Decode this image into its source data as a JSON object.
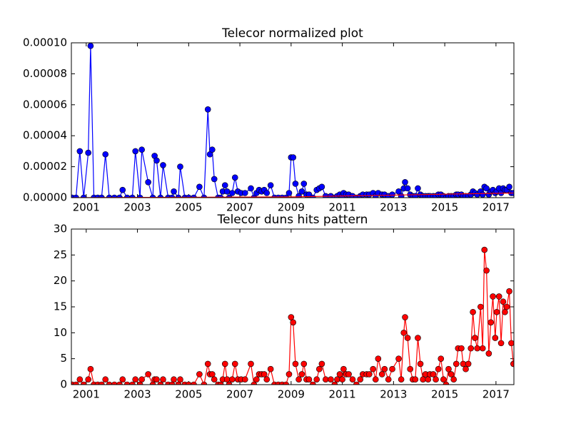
{
  "chart_data": [
    {
      "type": "line",
      "title": "Telecor normalized plot",
      "x": [
        2000.45,
        2000.6,
        2000.75,
        2000.9,
        2001.08,
        2001.17,
        2001.3,
        2001.45,
        2001.6,
        2001.75,
        2001.9,
        2002.1,
        2002.3,
        2002.42,
        2002.6,
        2002.8,
        2002.92,
        2003.1,
        2003.17,
        2003.42,
        2003.6,
        2003.67,
        2003.75,
        2003.9,
        2004.0,
        2004.2,
        2004.35,
        2004.42,
        2004.6,
        2004.67,
        2004.85,
        2005.0,
        2005.2,
        2005.42,
        2005.6,
        2005.75,
        2005.83,
        2005.92,
        2006.0,
        2006.15,
        2006.25,
        2006.33,
        2006.42,
        2006.5,
        2006.58,
        2006.7,
        2006.81,
        2006.92,
        2007.05,
        2007.2,
        2007.43,
        2007.55,
        2007.65,
        2007.75,
        2007.85,
        2007.95,
        2008.05,
        2008.2,
        2008.35,
        2008.5,
        2008.65,
        2008.8,
        2008.92,
        2009.0,
        2009.08,
        2009.17,
        2009.3,
        2009.42,
        2009.5,
        2009.6,
        2009.7,
        2009.85,
        2010.0,
        2010.1,
        2010.2,
        2010.35,
        2010.55,
        2010.7,
        2010.8,
        2010.9,
        2011.0,
        2011.05,
        2011.15,
        2011.25,
        2011.4,
        2011.55,
        2011.7,
        2011.8,
        2011.95,
        2012.05,
        2012.2,
        2012.3,
        2012.4,
        2012.55,
        2012.65,
        2012.8,
        2012.95,
        2013.2,
        2013.3,
        2013.4,
        2013.45,
        2013.55,
        2013.65,
        2013.75,
        2013.85,
        2013.95,
        2014.05,
        2014.15,
        2014.25,
        2014.35,
        2014.42,
        2014.55,
        2014.65,
        2014.75,
        2014.85,
        2014.95,
        2015.05,
        2015.15,
        2015.25,
        2015.35,
        2015.45,
        2015.52,
        2015.65,
        2015.72,
        2015.82,
        2015.92,
        2016.02,
        2016.1,
        2016.18,
        2016.27,
        2016.4,
        2016.48,
        2016.55,
        2016.63,
        2016.72,
        2016.8,
        2016.88,
        2016.97,
        2017.03,
        2017.12,
        2017.2,
        2017.28,
        2017.35,
        2017.42,
        2017.52,
        2017.6,
        2017.68
      ],
      "xlim": [
        2000.42,
        2017.7
      ],
      "xticks": [
        2001,
        2003,
        2005,
        2007,
        2009,
        2011,
        2013,
        2015,
        2017
      ],
      "ylim": [
        0,
        0.0001
      ],
      "yticks": [
        {
          "value": 0,
          "label": "0.00000"
        },
        {
          "value": 2e-05,
          "label": "0.00002"
        },
        {
          "value": 4e-05,
          "label": "0.00004"
        },
        {
          "value": 6e-05,
          "label": "0.00006"
        },
        {
          "value": 8e-05,
          "label": "0.00008"
        },
        {
          "value": 0.0001,
          "label": "0.00010"
        }
      ],
      "series": [
        {
          "color": "#0000ff",
          "marker": "o",
          "values": [
            0,
            0,
            3e-05,
            0,
            2.9e-05,
            9.8e-05,
            0,
            0,
            0,
            2.8e-05,
            0,
            0,
            0,
            5e-06,
            0,
            0,
            3e-05,
            0,
            3.1e-05,
            1e-05,
            0,
            2.7e-05,
            2.4e-05,
            0,
            2.1e-05,
            0,
            0,
            4e-06,
            0,
            2e-05,
            0,
            0,
            0,
            7e-06,
            0,
            5.7e-05,
            2.8e-05,
            3.1e-05,
            1.2e-05,
            0,
            0,
            4e-06,
            8e-06,
            4e-06,
            0,
            3e-06,
            1.3e-05,
            4e-06,
            3e-06,
            3e-06,
            6e-06,
            0,
            3e-06,
            5e-06,
            4e-06,
            5e-06,
            3e-06,
            8e-06,
            0,
            0,
            0,
            0,
            3e-06,
            2.6e-05,
            2.6e-05,
            9e-06,
            1e-06,
            4e-06,
            9e-06,
            2e-06,
            2e-06,
            0,
            5e-06,
            6e-06,
            7e-06,
            1e-06,
            1e-06,
            0,
            1e-06,
            2e-06,
            1e-06,
            3e-06,
            2e-06,
            2e-06,
            1e-06,
            0,
            1e-06,
            2e-06,
            2e-06,
            2e-06,
            3e-06,
            1e-06,
            3e-06,
            2e-06,
            2e-06,
            1e-06,
            2e-06,
            4e-06,
            1e-06,
            6e-06,
            1e-05,
            6e-06,
            2e-06,
            1e-06,
            1e-06,
            6e-06,
            2e-06,
            1e-06,
            1e-06,
            1e-06,
            1e-06,
            1e-06,
            1e-06,
            2e-06,
            2e-06,
            1e-06,
            0,
            1e-06,
            1e-06,
            1e-06,
            2e-06,
            2e-06,
            2e-06,
            1e-06,
            1e-06,
            1e-06,
            2e-06,
            4e-06,
            3e-06,
            2e-06,
            4e-06,
            2e-06,
            7e-06,
            6e-06,
            2e-06,
            4e-06,
            5e-06,
            3e-06,
            4e-06,
            6e-06,
            3e-06,
            6e-06,
            5e-06,
            5e-06,
            7e-06,
            3e-06,
            3e-06
          ]
        },
        {
          "color": "#ff0000",
          "x": [
            2000.45,
            2009.0,
            2017.68
          ],
          "values": [
            0,
            5e-07,
            3e-06
          ]
        }
      ]
    },
    {
      "type": "line",
      "title": "Telecor duns hits pattern",
      "x": [
        2000.45,
        2000.6,
        2000.75,
        2000.9,
        2001.08,
        2001.17,
        2001.3,
        2001.45,
        2001.6,
        2001.75,
        2001.9,
        2002.1,
        2002.3,
        2002.42,
        2002.6,
        2002.8,
        2002.92,
        2003.1,
        2003.17,
        2003.42,
        2003.6,
        2003.67,
        2003.75,
        2003.9,
        2004.0,
        2004.2,
        2004.35,
        2004.42,
        2004.6,
        2004.67,
        2004.85,
        2005.0,
        2005.2,
        2005.42,
        2005.6,
        2005.75,
        2005.83,
        2005.92,
        2006.0,
        2006.15,
        2006.25,
        2006.33,
        2006.42,
        2006.5,
        2006.58,
        2006.7,
        2006.81,
        2006.92,
        2007.05,
        2007.2,
        2007.43,
        2007.55,
        2007.65,
        2007.75,
        2007.85,
        2007.95,
        2008.05,
        2008.2,
        2008.35,
        2008.5,
        2008.65,
        2008.8,
        2008.92,
        2009.0,
        2009.08,
        2009.17,
        2009.3,
        2009.42,
        2009.5,
        2009.6,
        2009.7,
        2009.85,
        2010.0,
        2010.1,
        2010.2,
        2010.35,
        2010.55,
        2010.7,
        2010.8,
        2010.9,
        2011.0,
        2011.05,
        2011.15,
        2011.25,
        2011.4,
        2011.55,
        2011.7,
        2011.8,
        2011.95,
        2012.05,
        2012.2,
        2012.3,
        2012.4,
        2012.55,
        2012.65,
        2012.8,
        2012.95,
        2013.2,
        2013.3,
        2013.4,
        2013.45,
        2013.55,
        2013.65,
        2013.75,
        2013.85,
        2013.95,
        2014.05,
        2014.15,
        2014.25,
        2014.35,
        2014.42,
        2014.55,
        2014.65,
        2014.75,
        2014.85,
        2014.95,
        2015.05,
        2015.15,
        2015.25,
        2015.35,
        2015.45,
        2015.52,
        2015.65,
        2015.72,
        2015.82,
        2015.92,
        2016.02,
        2016.1,
        2016.18,
        2016.27,
        2016.4,
        2016.48,
        2016.55,
        2016.63,
        2016.72,
        2016.8,
        2016.88,
        2016.97,
        2017.03,
        2017.12,
        2017.2,
        2017.28,
        2017.35,
        2017.42,
        2017.52,
        2017.6,
        2017.68
      ],
      "xlim": [
        2000.42,
        2017.7
      ],
      "xticks": [
        2001,
        2003,
        2005,
        2007,
        2009,
        2011,
        2013,
        2015,
        2017
      ],
      "ylim": [
        0,
        30
      ],
      "yticks": [
        0,
        5,
        10,
        15,
        20,
        25,
        30
      ],
      "series": [
        {
          "color": "#ff0000",
          "marker": "o",
          "values": [
            0,
            0,
            1,
            0,
            1,
            3,
            0,
            0,
            0,
            1,
            0,
            0,
            0,
            1,
            0,
            0,
            1,
            0,
            1,
            2,
            0,
            1,
            1,
            0,
            1,
            0,
            0,
            1,
            0,
            1,
            0,
            0,
            0,
            2,
            0,
            4,
            2,
            2,
            1,
            0,
            0,
            1,
            4,
            1,
            0,
            1,
            4,
            1,
            1,
            1,
            4,
            0,
            1,
            2,
            2,
            2,
            1,
            3,
            0,
            0,
            0,
            0,
            2,
            13,
            12,
            4,
            1,
            2,
            4,
            1,
            1,
            0,
            1,
            3,
            4,
            1,
            1,
            0,
            1,
            2,
            1,
            3,
            2,
            2,
            1,
            0,
            1,
            2,
            2,
            2,
            3,
            1,
            5,
            2,
            3,
            1,
            3,
            5,
            1,
            10,
            13,
            9,
            3,
            1,
            1,
            9,
            4,
            1,
            2,
            1,
            2,
            2,
            1,
            3,
            5,
            1,
            0,
            3,
            2,
            1,
            4,
            7,
            7,
            4,
            3,
            4,
            7,
            14,
            9,
            7,
            15,
            7,
            26,
            22,
            6,
            12,
            17,
            9,
            14,
            17,
            8,
            16,
            14,
            15,
            18,
            8,
            4
          ]
        }
      ]
    }
  ]
}
